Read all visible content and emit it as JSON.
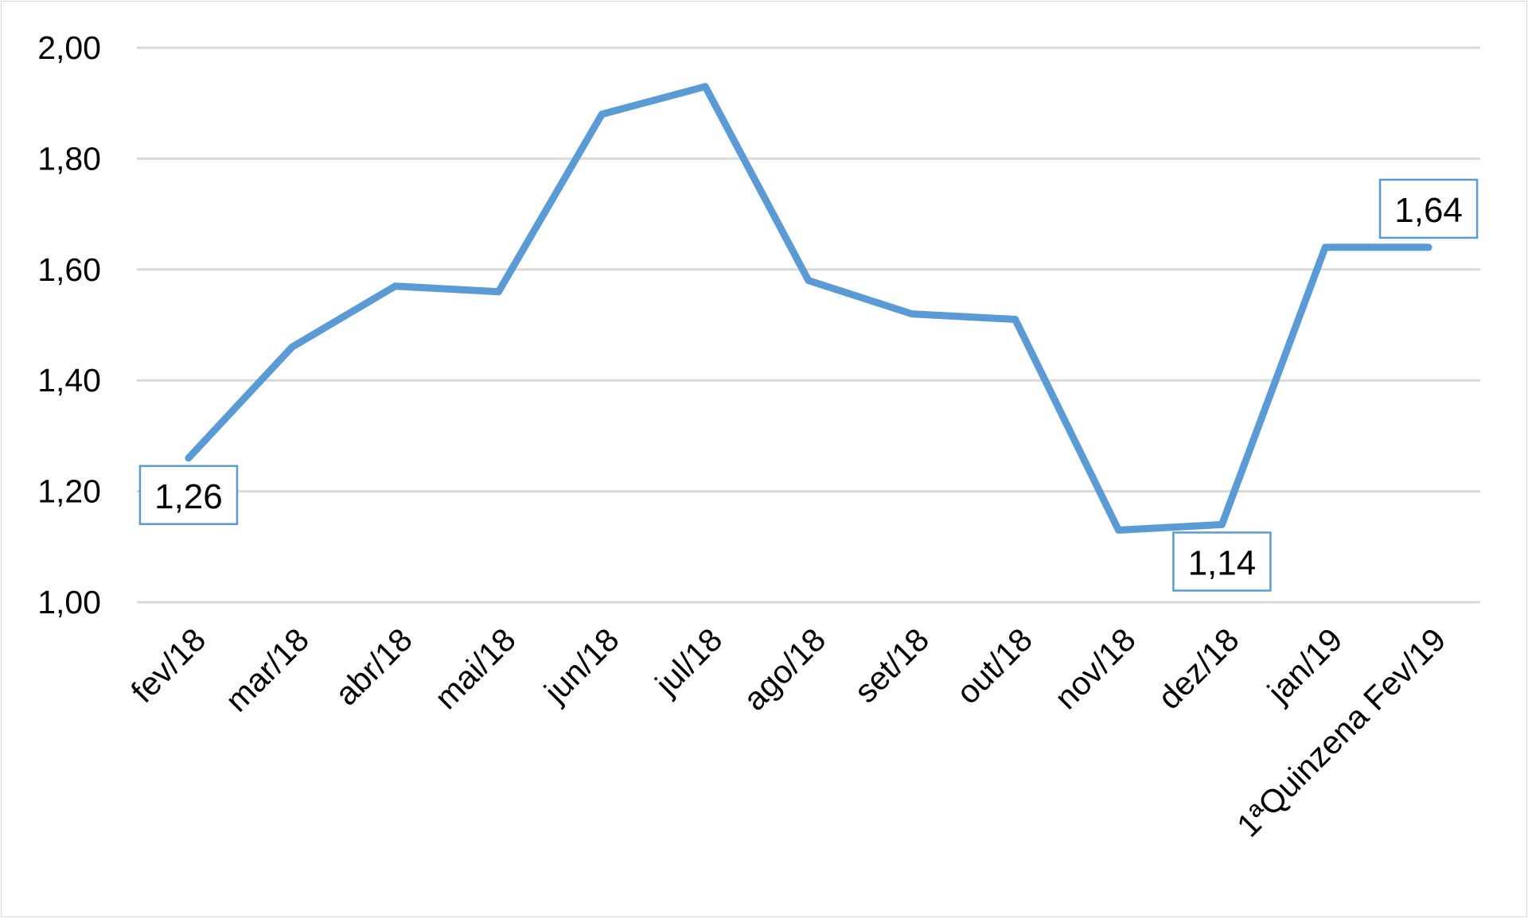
{
  "chart_data": {
    "type": "line",
    "title": "",
    "xlabel": "",
    "ylabel": "",
    "categories": [
      "fev/18",
      "mar/18",
      "abr/18",
      "mai/18",
      "jun/18",
      "jul/18",
      "ago/18",
      "set/18",
      "out/18",
      "nov/18",
      "dez/18",
      "jan/19",
      "1ªQuinzena Fev/19"
    ],
    "series": [
      {
        "values": [
          1.26,
          1.46,
          1.57,
          1.56,
          1.88,
          1.93,
          1.58,
          1.52,
          1.51,
          1.13,
          1.14,
          1.64,
          1.64
        ]
      }
    ],
    "ylim": [
      1.0,
      2.0
    ],
    "yticks": [
      "1,00",
      "1,20",
      "1,40",
      "1,60",
      "1,80",
      "2,00"
    ],
    "grid": true,
    "legend": "none",
    "data_labels": [
      {
        "index": 0,
        "text": "1,26",
        "position": "below"
      },
      {
        "index": 10,
        "text": "1,14",
        "position": "below"
      },
      {
        "index": 12,
        "text": "1,64",
        "position": "above"
      }
    ],
    "colors": {
      "line": "#5b9bd5",
      "grid": "#d9d9d9",
      "label_border": "#5b9bd5"
    }
  }
}
